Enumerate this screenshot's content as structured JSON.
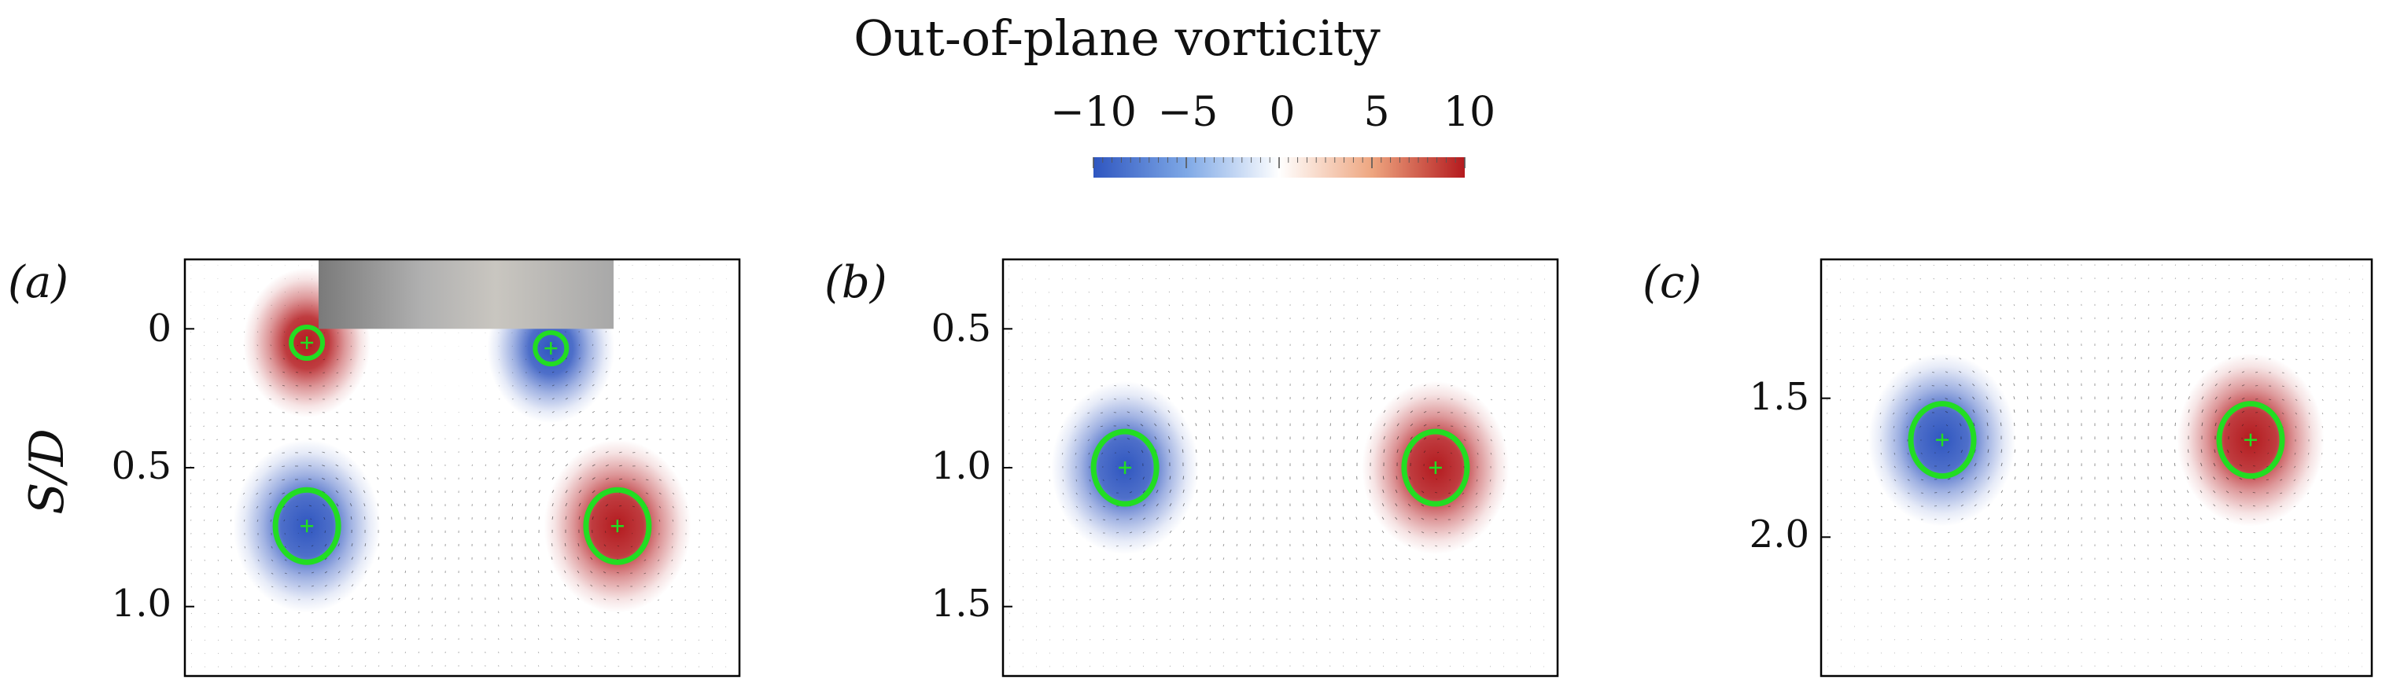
{
  "colorbar": {
    "title": "Out-of-plane vorticity",
    "ticks": [
      "−10",
      "−5",
      "0",
      "5",
      "10"
    ],
    "tick_values": [
      -10,
      -5,
      0,
      5,
      10
    ],
    "range": [
      -10,
      10
    ],
    "colors": {
      "neg": "#2f56c0",
      "mid": "#ffffff",
      "pos": "#b41a1e"
    }
  },
  "shared": {
    "ylabel": "S/D"
  },
  "colors": {
    "vortex_contour": "#22dd22",
    "cylinder": "#a8a8a8",
    "frame": "#000000"
  },
  "chart_data": [
    {
      "type": "vector-field",
      "panel_label": "(a)",
      "ylabel": "S/D",
      "ylim": [
        1.25,
        -0.25
      ],
      "yticks": [
        0,
        0.5,
        1.0
      ],
      "ytick_labels": [
        "0",
        "0.5",
        "1.0"
      ],
      "has_cylinder": true,
      "vortices": [
        {
          "x": 0.22,
          "y": 0.05,
          "sign": 1,
          "strength": 0.45
        },
        {
          "x": 0.66,
          "y": 0.07,
          "sign": -1,
          "strength": 0.45
        },
        {
          "x": 0.22,
          "y": 0.71,
          "sign": -1,
          "strength": 1.0
        },
        {
          "x": 0.78,
          "y": 0.71,
          "sign": 1,
          "strength": 1.0
        }
      ]
    },
    {
      "type": "vector-field",
      "panel_label": "(b)",
      "ylabel": "",
      "ylim": [
        1.75,
        0.25
      ],
      "yticks": [
        0.5,
        1.0,
        1.5
      ],
      "ytick_labels": [
        "0.5",
        "1.0",
        "1.5"
      ],
      "has_cylinder": false,
      "vortices": [
        {
          "x": 0.22,
          "y": 1.0,
          "sign": -1,
          "strength": 1.0
        },
        {
          "x": 0.78,
          "y": 1.0,
          "sign": 1,
          "strength": 1.0
        }
      ]
    },
    {
      "type": "vector-field",
      "panel_label": "(c)",
      "ylabel": "",
      "ylim": [
        2.5,
        1.0
      ],
      "yticks": [
        1.5,
        2.0
      ],
      "ytick_labels": [
        "1.5",
        "2.0"
      ],
      "has_cylinder": false,
      "vortices": [
        {
          "x": 0.22,
          "y": 1.65,
          "sign": -1,
          "strength": 1.0
        },
        {
          "x": 0.78,
          "y": 1.65,
          "sign": 1,
          "strength": 1.0
        }
      ]
    }
  ]
}
